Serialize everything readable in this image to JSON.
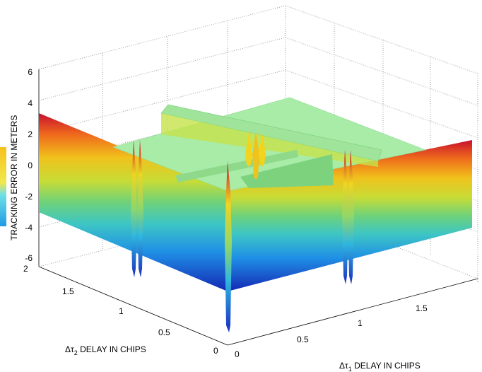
{
  "chart_data": {
    "type": "surface",
    "zlabel": "TRACKING ERROR IN METERS",
    "xlabel": "Δτ1 DELAY IN CHIPS",
    "ylabel": "Δτ2 DELAY IN CHIPS",
    "xlabel_parts": {
      "prefix": "Δτ",
      "sub": "1",
      "suffix": " DELAY IN CHIPS"
    },
    "ylabel_parts": {
      "prefix": "Δτ",
      "sub": "2",
      "suffix": " DELAY IN CHIPS"
    },
    "xlim": [
      0,
      2
    ],
    "ylim": [
      0,
      2
    ],
    "zlim": [
      -6,
      6
    ],
    "x_ticks": [
      "0",
      "0.5",
      "1",
      "1.5"
    ],
    "y_ticks": [
      "0",
      "0.5",
      "1",
      "1.5",
      "2"
    ],
    "z_ticks": [
      "-6",
      "-4",
      "-2",
      "0",
      "2",
      "4",
      "6"
    ],
    "grid": true,
    "colormap": "jet",
    "colorbar_visible": "partial, left edge",
    "surface_features": {
      "flat_plateau_z": 0,
      "wall_along_x_near_y0": {
        "z_range": [
          -4,
          3
        ]
      },
      "wall_along_y_near_x0": {
        "z_range": [
          -4,
          3
        ]
      },
      "ridge_at_x": 1,
      "ridge_at_y": 1,
      "spikes": [
        {
          "x": 1,
          "y": 0,
          "z_range": [
            -6,
            3
          ]
        },
        {
          "x": 0,
          "y": 1,
          "z_range": [
            -4,
            3
          ]
        },
        {
          "x": 1,
          "y": 1,
          "z_range": [
            -1,
            2
          ]
        },
        {
          "x": 2,
          "y": 1,
          "z_range": [
            -4,
            3
          ]
        }
      ]
    }
  }
}
